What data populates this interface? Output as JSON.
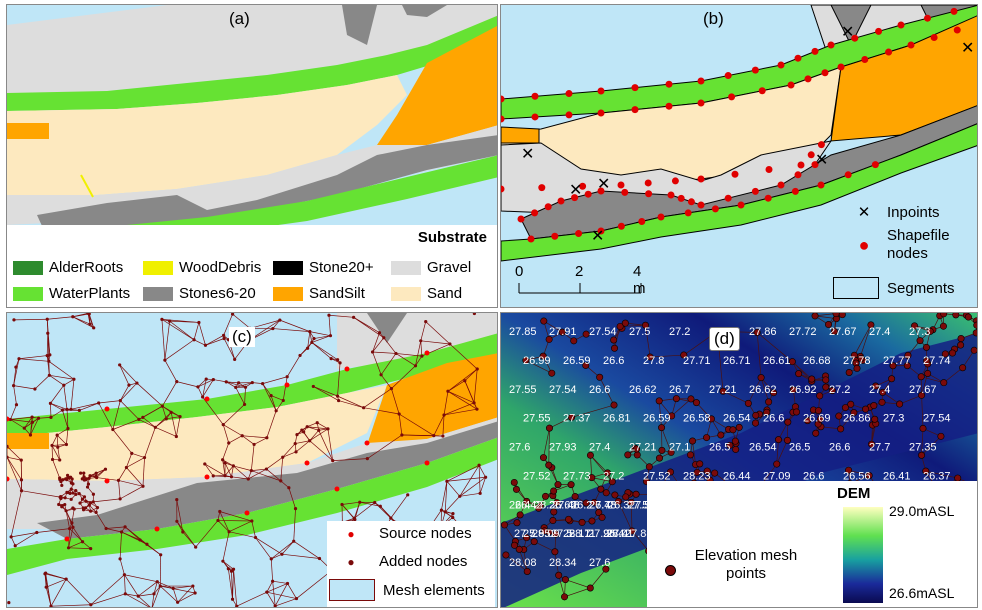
{
  "panels": {
    "a": {
      "label": "(a)",
      "legend_title": "Substrate",
      "legend": [
        {
          "label": "AlderRoots",
          "color": "#2e8b2e"
        },
        {
          "label": "WoodDebris",
          "color": "#f0f000"
        },
        {
          "label": "Stone20+",
          "color": "#000000"
        },
        {
          "label": "Gravel",
          "color": "#dddddd"
        },
        {
          "label": "WaterPlants",
          "color": "#66e233"
        },
        {
          "label": "Stones6-20",
          "color": "#888888"
        },
        {
          "label": "SandSilt",
          "color": "#ffa500"
        },
        {
          "label": "Sand",
          "color": "#fde9bf"
        }
      ]
    },
    "b": {
      "label": "(b)",
      "legend": {
        "inpoints": "Inpoints",
        "shapefile_nodes": "Shapefile nodes",
        "segments": "Segments"
      },
      "scalebar": {
        "ticks": [
          "0",
          "2",
          "4 m"
        ]
      }
    },
    "c": {
      "label": "(c)",
      "legend": {
        "source_nodes": "Source nodes",
        "added_nodes": "Added nodes",
        "mesh_elements": "Mesh elements"
      }
    },
    "d": {
      "label": "(d)",
      "legend": {
        "title": "DEM",
        "max": "29.0mASL",
        "min": "26.6mASL",
        "points": "Elevation mesh points"
      },
      "elevation_labels": [
        "27.85",
        "27.91",
        "27.54",
        "27.5",
        "27.2",
        "27.18",
        "27.86",
        "27.72",
        "27.67",
        "27.4",
        "27.3",
        "26.99",
        "26.59",
        "26.6",
        "27.8",
        "27.71",
        "26.71",
        "26.61",
        "26.68",
        "27.78",
        "27.77",
        "27.74",
        "27.55",
        "27.54",
        "26.6",
        "26.62",
        "26.7",
        "27.21",
        "26.62",
        "26.92",
        "27.2",
        "27.4",
        "27.67",
        "27.55",
        "27.37",
        "26.81",
        "26.59",
        "26.58",
        "26.54",
        "26.6",
        "26.69",
        "26.86",
        "27.3",
        "27.54",
        "27.6",
        "27.93",
        "27.4",
        "27.21",
        "27.1",
        "26.5",
        "26.54",
        "26.5",
        "26.6",
        "27.7",
        "27.35",
        "27.52",
        "27.73",
        "27.2",
        "27.52",
        "28.23",
        "26.44",
        "27.09",
        "26.6",
        "26.56",
        "26.41",
        "26.37",
        "26.4",
        "26.66",
        "26.7",
        "27.5",
        "27.5",
        "28.26",
        "26.2",
        "26.3",
        "26.42",
        "27.48",
        "27.48",
        "27.95",
        "28.17",
        "26.4",
        "27.4",
        "27.5",
        "27.5",
        "27.9",
        "27.88",
        "28.09",
        "28.11",
        "28.01",
        "28.08",
        "28.34",
        "27.6"
      ]
    }
  }
}
